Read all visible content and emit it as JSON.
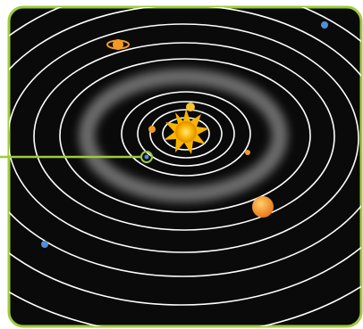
{
  "diagram": {
    "type": "solar-system-orbits",
    "colors": {
      "background": "#0a0a0a",
      "frame": "#9ccc3c",
      "pointer": "#9ccc3c",
      "orbit": "#ffffff",
      "sun": "#f7b500",
      "planet_warm": "#f29a24",
      "planet_yellow": "#f4c430",
      "planet_blue": "#4f8fd8",
      "asteroid_belt": "#8c8c8c"
    },
    "sun": {
      "name": "sun"
    },
    "highlighted_body": {
      "name": "earth"
    },
    "bodies": [
      {
        "name": "mercury",
        "color": "planet_warm"
      },
      {
        "name": "venus",
        "color": "planet_yellow"
      },
      {
        "name": "earth",
        "color": "pointer"
      },
      {
        "name": "mars",
        "color": "planet_warm"
      },
      {
        "name": "jupiter",
        "color": "planet_warm"
      },
      {
        "name": "saturn",
        "color": "planet_warm"
      },
      {
        "name": "uranus",
        "color": "planet_blue"
      },
      {
        "name": "neptune",
        "color": "planet_blue"
      }
    ],
    "orbit_count": 10,
    "has_asteroid_belt": true
  }
}
